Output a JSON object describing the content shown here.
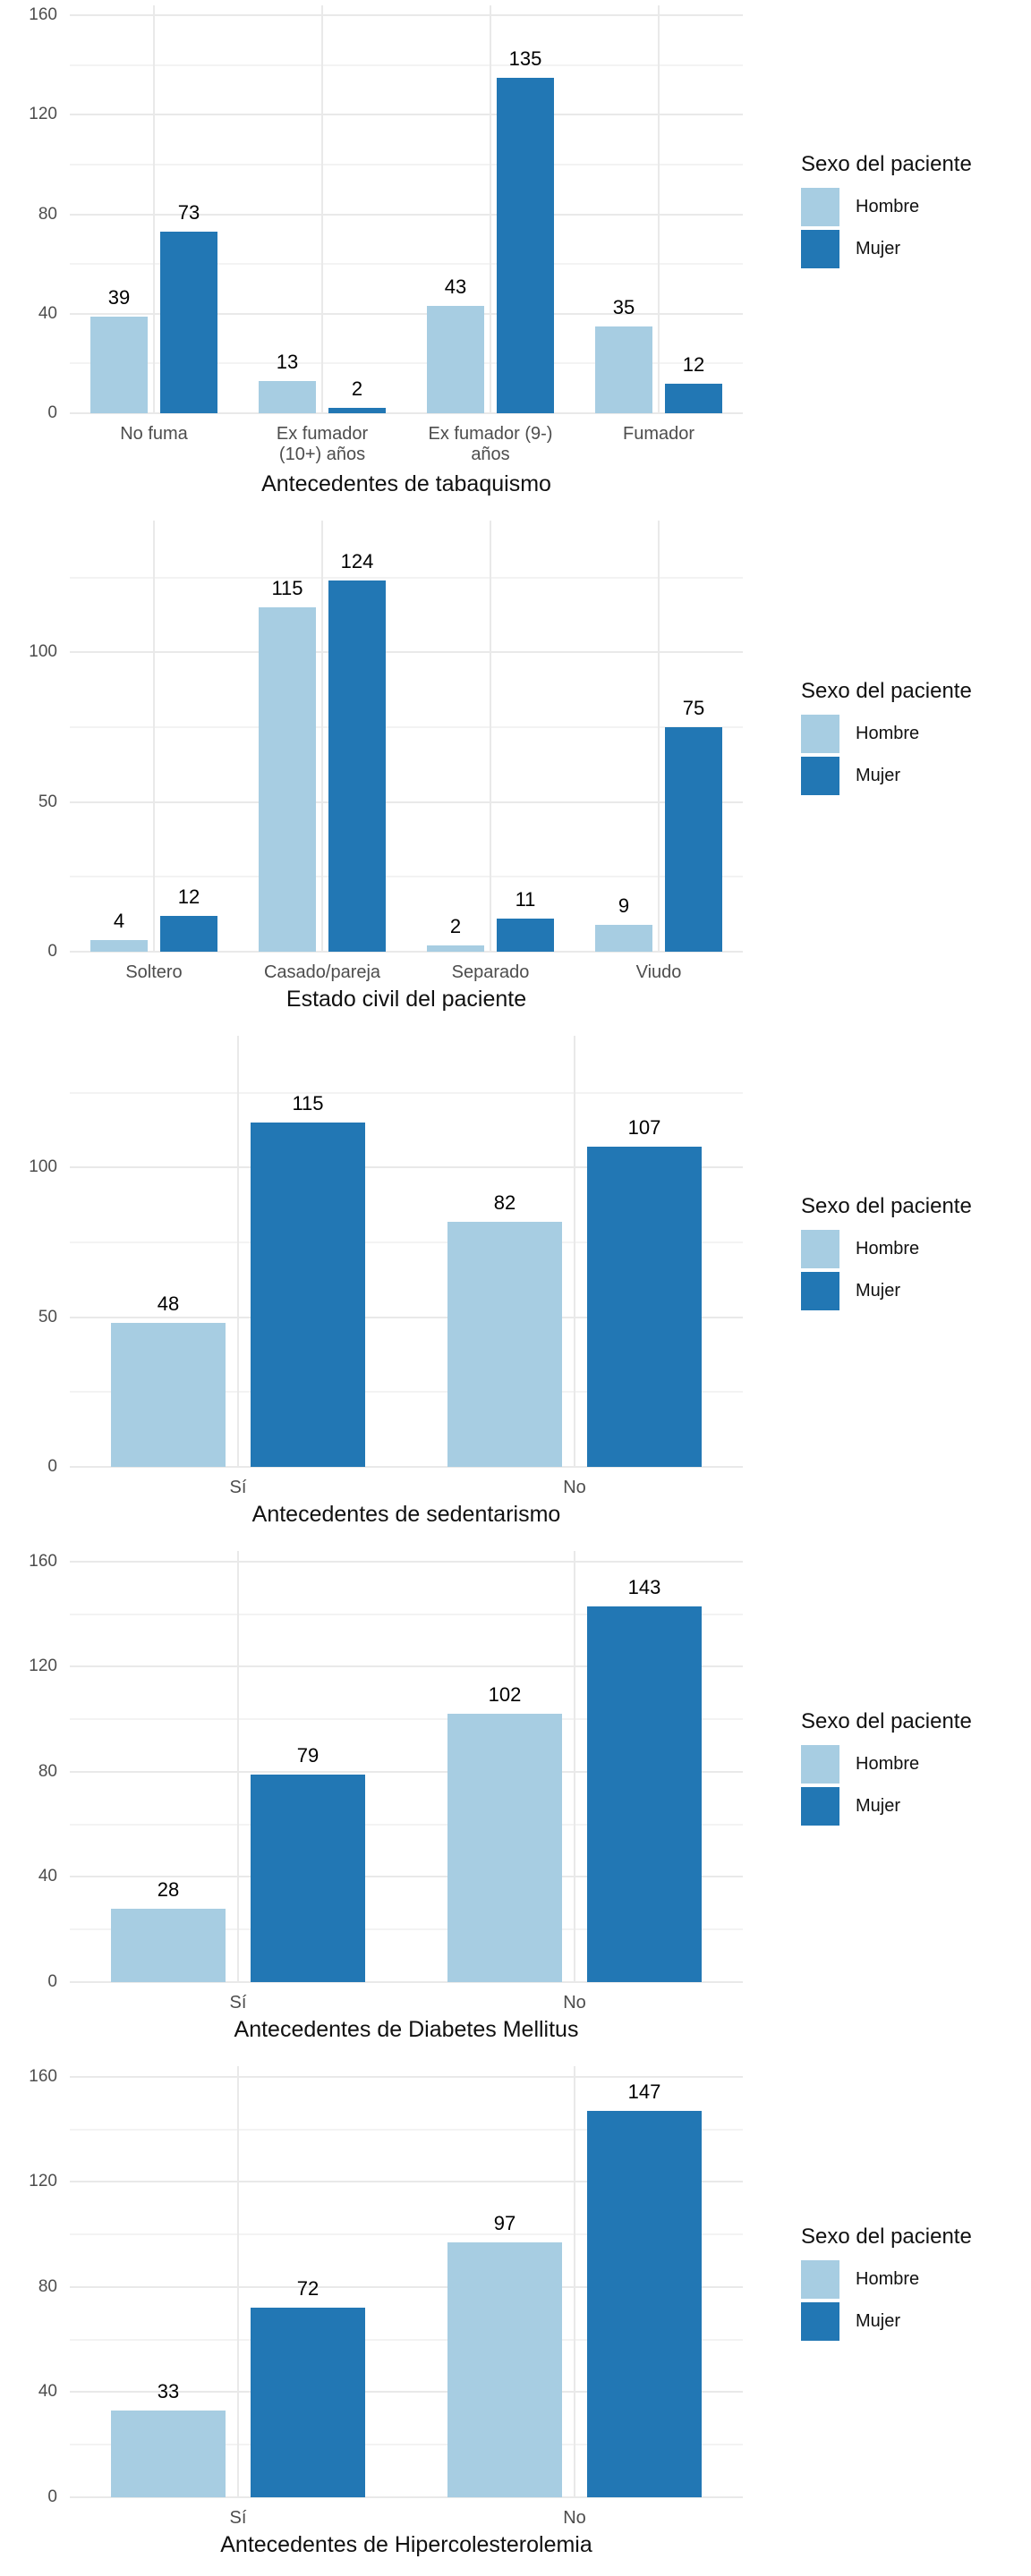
{
  "figure": {
    "background": "#ffffff"
  },
  "colors": {
    "hombre_fill": "#a7cde2",
    "mujer_fill": "#2277b4",
    "grid_major": "#e9e9e9",
    "grid_minor": "#f3f3f3",
    "tick_text": "#4d4d4d",
    "title_text": "#111111",
    "value_text": "#000000"
  },
  "legend": {
    "title": "Sexo del paciente",
    "position": "right",
    "items": [
      {
        "label": "Hombre",
        "color_key": "hombre_fill",
        "swatch": "hombre-swatch"
      },
      {
        "label": "Mujer",
        "color_key": "mujer_fill",
        "swatch": "mujer-swatch"
      }
    ]
  },
  "chart_data": [
    {
      "type": "bar",
      "title": "",
      "xlabel": "Antecedentes de tabaquismo",
      "ylabel": "",
      "categories": [
        "No fuma",
        "Ex fumador\n(10+) años",
        "Ex fumador (9-)\naños",
        "Fumador"
      ],
      "series": [
        {
          "name": "Hombre",
          "color_key": "hombre_fill",
          "values": [
            39,
            13,
            43,
            35
          ]
        },
        {
          "name": "Mujer",
          "color_key": "mujer_fill",
          "values": [
            73,
            2,
            135,
            12
          ]
        }
      ],
      "value_labels": true,
      "ylim": [
        0,
        164
      ],
      "yticks_major": [
        0,
        40,
        80,
        120,
        160
      ],
      "yticks_minor": [
        20,
        60,
        100,
        140
      ],
      "grid": true,
      "legend_position": "right"
    },
    {
      "type": "bar",
      "title": "",
      "xlabel": "Estado civil del paciente",
      "ylabel": "",
      "categories": [
        "Soltero",
        "Casado/pareja",
        "Separado",
        "Viudo"
      ],
      "series": [
        {
          "name": "Hombre",
          "color_key": "hombre_fill",
          "values": [
            4,
            115,
            2,
            9
          ]
        },
        {
          "name": "Mujer",
          "color_key": "mujer_fill",
          "values": [
            12,
            124,
            11,
            75
          ]
        }
      ],
      "value_labels": true,
      "ylim": [
        0,
        144
      ],
      "yticks_major": [
        0,
        50,
        100
      ],
      "yticks_minor": [
        25,
        75,
        125
      ],
      "grid": true,
      "legend_position": "right"
    },
    {
      "type": "bar",
      "title": "",
      "xlabel": "Antecedentes de sedentarismo",
      "ylabel": "",
      "categories": [
        "Sí",
        "No"
      ],
      "series": [
        {
          "name": "Hombre",
          "color_key": "hombre_fill",
          "values": [
            48,
            82
          ]
        },
        {
          "name": "Mujer",
          "color_key": "mujer_fill",
          "values": [
            115,
            107
          ]
        }
      ],
      "value_labels": true,
      "ylim": [
        0,
        144
      ],
      "yticks_major": [
        0,
        50,
        100
      ],
      "yticks_minor": [
        25,
        75,
        125
      ],
      "grid": true,
      "legend_position": "right"
    },
    {
      "type": "bar",
      "title": "",
      "xlabel": "Antecedentes de Diabetes Mellitus",
      "ylabel": "",
      "categories": [
        "Sí",
        "No"
      ],
      "series": [
        {
          "name": "Hombre",
          "color_key": "hombre_fill",
          "values": [
            28,
            102
          ]
        },
        {
          "name": "Mujer",
          "color_key": "mujer_fill",
          "values": [
            79,
            143
          ]
        }
      ],
      "value_labels": true,
      "ylim": [
        0,
        164
      ],
      "yticks_major": [
        0,
        40,
        80,
        120,
        160
      ],
      "yticks_minor": [
        20,
        60,
        100,
        140
      ],
      "grid": true,
      "legend_position": "right"
    },
    {
      "type": "bar",
      "title": "",
      "xlabel": "Antecedentes de Hipercolesterolemia",
      "ylabel": "",
      "categories": [
        "Sí",
        "No"
      ],
      "series": [
        {
          "name": "Hombre",
          "color_key": "hombre_fill",
          "values": [
            33,
            97
          ]
        },
        {
          "name": "Mujer",
          "color_key": "mujer_fill",
          "values": [
            72,
            147
          ]
        }
      ],
      "value_labels": true,
      "ylim": [
        0,
        164
      ],
      "yticks_major": [
        0,
        40,
        80,
        120,
        160
      ],
      "yticks_minor": [
        20,
        60,
        100,
        140
      ],
      "grid": true,
      "legend_position": "right"
    }
  ]
}
